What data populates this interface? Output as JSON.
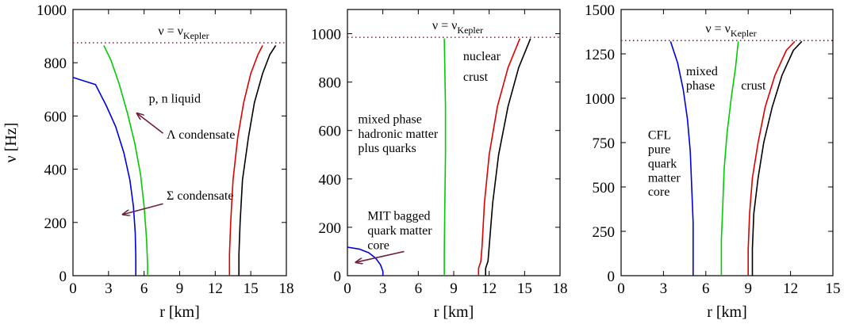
{
  "chart_data": [
    {
      "type": "line",
      "xlabel": "r [km]",
      "ylabel": "ν [Hz]",
      "xlim": [
        0,
        18
      ],
      "ylim": [
        0,
        1000
      ],
      "xticks": [
        "0",
        "3",
        "6",
        "9",
        "12",
        "15",
        "18"
      ],
      "yticks": [
        "0",
        "200",
        "400",
        "600",
        "800",
        "1000"
      ],
      "kepler": {
        "label": "ν = ν",
        "sub": "Kepler",
        "value": 875
      },
      "series": [
        {
          "color": "#0000dd",
          "points": [
            [
              0,
              745
            ],
            [
              1.9,
              718
            ],
            [
              2.8,
              640
            ],
            [
              3.6,
              560
            ],
            [
              4.3,
              460
            ],
            [
              4.8,
              360
            ],
            [
              5.1,
              260
            ],
            [
              5.25,
              160
            ],
            [
              5.3,
              70
            ],
            [
              5.3,
              0
            ]
          ]
        },
        {
          "color": "#00cc00",
          "points": [
            [
              2.6,
              865
            ],
            [
              3.2,
              810
            ],
            [
              3.9,
              720
            ],
            [
              4.6,
              610
            ],
            [
              5.2,
              500
            ],
            [
              5.7,
              380
            ],
            [
              6.0,
              260
            ],
            [
              6.2,
              140
            ],
            [
              6.3,
              40
            ],
            [
              6.3,
              0
            ]
          ]
        },
        {
          "color": "#dd0000",
          "points": [
            [
              13.2,
              0
            ],
            [
              13.2,
              80
            ],
            [
              13.3,
              200
            ],
            [
              13.5,
              360
            ],
            [
              13.9,
              520
            ],
            [
              14.4,
              650
            ],
            [
              15.0,
              760
            ],
            [
              15.6,
              830
            ],
            [
              16.0,
              865
            ]
          ]
        },
        {
          "color": "#000000",
          "points": [
            [
              14.0,
              0
            ],
            [
              14.0,
              80
            ],
            [
              14.1,
              200
            ],
            [
              14.3,
              360
            ],
            [
              14.8,
              520
            ],
            [
              15.3,
              650
            ],
            [
              16.0,
              760
            ],
            [
              16.6,
              830
            ],
            [
              17.1,
              865
            ]
          ]
        }
      ],
      "annotations": [
        {
          "text": "p, n liquid",
          "x": 6.4,
          "y": 650
        },
        {
          "text": "Λ condensate",
          "x": 7.9,
          "y": 515
        },
        {
          "text": "Σ condensate",
          "x": 7.9,
          "y": 285
        }
      ],
      "arrows": [
        {
          "from": [
            7.6,
            535
          ],
          "to": [
            5.4,
            610
          ]
        },
        {
          "from": [
            7.6,
            270
          ],
          "to": [
            4.2,
            230
          ]
        }
      ]
    },
    {
      "type": "line",
      "xlabel": "r [km]",
      "ylabel": "",
      "xlim": [
        0,
        18
      ],
      "ylim": [
        0,
        1100
      ],
      "xticks": [
        "0",
        "3",
        "6",
        "9",
        "12",
        "15",
        "18"
      ],
      "yticks": [
        "0",
        "200",
        "400",
        "600",
        "800",
        "1000"
      ],
      "kepler": {
        "label": "ν = ν",
        "sub": "Kepler",
        "value": 985
      },
      "series": [
        {
          "color": "#0000dd",
          "points": [
            [
              0,
              118
            ],
            [
              1.0,
              110
            ],
            [
              1.8,
              95
            ],
            [
              2.4,
              72
            ],
            [
              2.8,
              45
            ],
            [
              3.0,
              18
            ],
            [
              3.0,
              0
            ]
          ]
        },
        {
          "color": "#00cc00",
          "points": [
            [
              8.2,
              0
            ],
            [
              8.2,
              100
            ],
            [
              8.25,
              300
            ],
            [
              8.3,
              500
            ],
            [
              8.3,
              700
            ],
            [
              8.2,
              980
            ]
          ]
        },
        {
          "color": "#dd0000",
          "points": [
            [
              11.1,
              0
            ],
            [
              11.1,
              30
            ],
            [
              11.3,
              60
            ],
            [
              11.4,
              120
            ],
            [
              11.6,
              300
            ],
            [
              12.0,
              500
            ],
            [
              12.7,
              700
            ],
            [
              13.6,
              860
            ],
            [
              14.6,
              980
            ]
          ]
        },
        {
          "color": "#000000",
          "points": [
            [
              11.7,
              0
            ],
            [
              11.7,
              30
            ],
            [
              11.9,
              60
            ],
            [
              12.0,
              120
            ],
            [
              12.3,
              300
            ],
            [
              12.8,
              500
            ],
            [
              13.6,
              700
            ],
            [
              14.5,
              860
            ],
            [
              15.5,
              980
            ]
          ]
        }
      ],
      "annotations": [
        {
          "text": "nuclear",
          "x": 9.8,
          "y": 890
        },
        {
          "text": "crust",
          "x": 9.8,
          "y": 805
        },
        {
          "text": "mixed phase",
          "x": 0.9,
          "y": 630
        },
        {
          "text": "hadronic matter",
          "x": 0.9,
          "y": 570
        },
        {
          "text": "plus quarks",
          "x": 0.9,
          "y": 510
        },
        {
          "text": "MIT bagged",
          "x": 1.7,
          "y": 230
        },
        {
          "text": "quark matter",
          "x": 1.7,
          "y": 170
        },
        {
          "text": "core",
          "x": 1.7,
          "y": 110
        }
      ],
      "arrows": [
        {
          "from": [
            4.8,
            100
          ],
          "to": [
            0.7,
            55
          ]
        }
      ]
    },
    {
      "type": "line",
      "xlabel": "r [km]",
      "ylabel": "",
      "xlim": [
        0,
        15
      ],
      "ylim": [
        0,
        1500
      ],
      "xticks": [
        "0",
        "3",
        "6",
        "9",
        "12",
        "15"
      ],
      "yticks": [
        "0",
        "250",
        "500",
        "750",
        "1000",
        "1250",
        "1500"
      ],
      "kepler": {
        "label": "ν = ν",
        "sub": "Kepler",
        "value": 1325
      },
      "series": [
        {
          "color": "#0000dd",
          "points": [
            [
              3.5,
              1320
            ],
            [
              4.0,
              1200
            ],
            [
              4.4,
              1050
            ],
            [
              4.7,
              880
            ],
            [
              4.9,
              700
            ],
            [
              5.0,
              500
            ],
            [
              5.1,
              300
            ],
            [
              5.1,
              100
            ],
            [
              5.1,
              0
            ]
          ]
        },
        {
          "color": "#00cc00",
          "points": [
            [
              7.1,
              0
            ],
            [
              7.1,
              200
            ],
            [
              7.2,
              400
            ],
            [
              7.3,
              600
            ],
            [
              7.5,
              800
            ],
            [
              7.8,
              1000
            ],
            [
              8.1,
              1170
            ],
            [
              8.3,
              1320
            ]
          ]
        },
        {
          "color": "#dd0000",
          "points": [
            [
              9.0,
              0
            ],
            [
              9.0,
              150
            ],
            [
              9.1,
              350
            ],
            [
              9.3,
              550
            ],
            [
              9.7,
              750
            ],
            [
              10.2,
              950
            ],
            [
              10.9,
              1130
            ],
            [
              11.7,
              1270
            ],
            [
              12.3,
              1320
            ]
          ]
        },
        {
          "color": "#000000",
          "points": [
            [
              9.3,
              0
            ],
            [
              9.3,
              150
            ],
            [
              9.4,
              350
            ],
            [
              9.7,
              550
            ],
            [
              10.1,
              750
            ],
            [
              10.7,
              950
            ],
            [
              11.4,
              1130
            ],
            [
              12.2,
              1270
            ],
            [
              12.8,
              1320
            ]
          ]
        }
      ],
      "annotations": [
        {
          "text": "mixed",
          "x": 4.6,
          "y": 1130
        },
        {
          "text": "phase",
          "x": 4.6,
          "y": 1050
        },
        {
          "text": "crust",
          "x": 8.5,
          "y": 1050
        },
        {
          "text": "CFL",
          "x": 1.9,
          "y": 770
        },
        {
          "text": "pure",
          "x": 1.9,
          "y": 690
        },
        {
          "text": "quark",
          "x": 1.9,
          "y": 610
        },
        {
          "text": "matter",
          "x": 1.9,
          "y": 530
        },
        {
          "text": "core",
          "x": 1.9,
          "y": 450
        }
      ],
      "arrows": []
    }
  ]
}
